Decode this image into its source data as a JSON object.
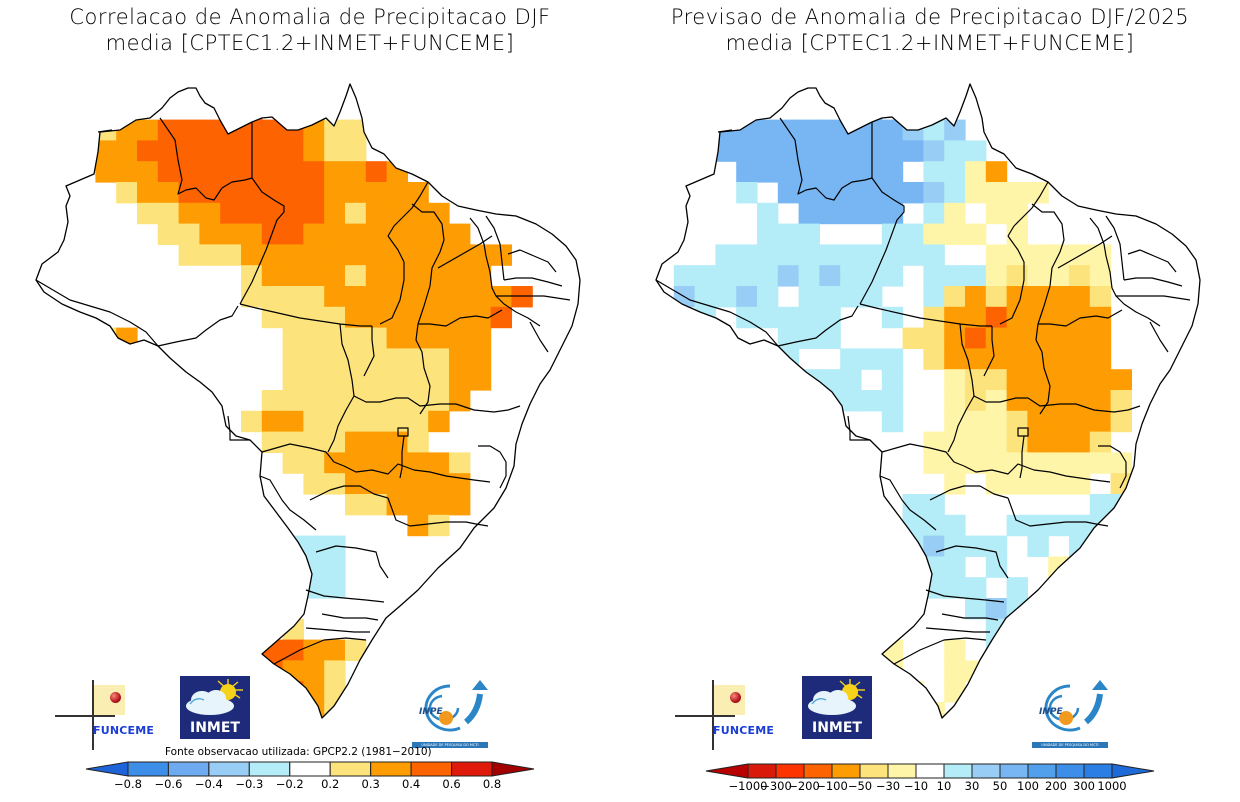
{
  "left_panel": {
    "title_line1": "Correlacao de Anomalia de Precipitacao DJF",
    "title_line2": "media [CPTEC1.2+INMET+FUNCEME]",
    "source_note": "Fonte observacao utilizada: GPCP2.2 (1981−2010)"
  },
  "right_panel": {
    "title_line1": "Previsao de Anomalia de Precipitacao DJF/2025",
    "title_line2": "media [CPTEC1.2+INMET+FUNCEME]"
  },
  "logos": {
    "funceme": "FUNCEME",
    "inmet": "INMET",
    "inpe": "INPE",
    "inpe_subtitle": "UNIDADE DE PESQUISA DO MCTI"
  },
  "chart_data": [
    {
      "type": "heatmap",
      "title": "Correlacao de Anomalia de Precipitacao DJF",
      "subtitle": "media [CPTEC1.2+INMET+FUNCEME]",
      "region": "Brazil",
      "variable": "Correlation of precipitation anomaly",
      "source": "GPCP2.2 (1981-2010)",
      "legend": {
        "placement": "bottom",
        "tick_labels": [
          "−0.8",
          "−0.6",
          "−0.4",
          "−0.3",
          "−0.2",
          "0.2",
          "0.3",
          "0.4",
          "0.6",
          "0.8"
        ],
        "bins": [
          {
            "range": "< -0.8",
            "color": "#1e64d8"
          },
          {
            "range": "-0.8 to -0.6",
            "color": "#3d8ee8"
          },
          {
            "range": "-0.6 to -0.4",
            "color": "#6eaaf0"
          },
          {
            "range": "-0.4 to -0.3",
            "color": "#98cdf5"
          },
          {
            "range": "-0.3 to -0.2",
            "color": "#b4ecf7"
          },
          {
            "range": "-0.2 to 0.2",
            "color": "#ffffff"
          },
          {
            "range": "0.2 to 0.3",
            "color": "#fde37c"
          },
          {
            "range": "0.3 to 0.4",
            "color": "#fe9d03"
          },
          {
            "range": "0.4 to 0.6",
            "color": "#fd6300"
          },
          {
            "range": "0.6 to 0.8",
            "color": "#e01a0b"
          },
          {
            "range": "> 0.8",
            "color": "#a30000"
          }
        ]
      },
      "grid_legend_index": {
        "b3": "#98cdf5",
        "b4": "#b4ecf7",
        "w": "#ffffff",
        "y": "#fde37c",
        "o": "#fe9d03",
        "r": "#fd6300",
        "bb": "#6eaaf0"
      },
      "grid": [
        "..........o.......",
        ".........rr..........",
        "..yyoorrrrrrroyy......",
        "..yoorrrrrrrroyy......",
        "...ooorrrrrrrrooro....",
        "....yoorrrrrrrooooo...",
        ".....yyoorrrrroyoooo..",
        "....wwyyooorroooooooo.",
        "...wwwwyyyooooooooooooo",
        ".wwwwwwwwwyooooyoooooo",
        ".wwwwwwwwwyyyyooooooooor",
        ".wwwwwwwwwwyyyyooooooor",
        "..yyowwwwwwwyyyyyooooo",
        "..yoowwwwwwwyyyyyyyyoo",
        "....yywwwwwwyyyyyyyyoo",
        ".....wwwwwwyyyyyyyyyo",
        ".....wb4wwwyooyyyyyyo.",
        ".....wwwwwwyyyyoooyw..",
        ".......wwwwwyyooooooy.",
        ".......wwwwwwyyoooooo.",
        "........wwwwwwwyyoooo.",
        "........wwwwwwwwwwoy..",
        ".........wwwb4b4b4ww.....",
        ".........wb4bbb3b4b4w....",
        ".........wb4b4b3b4b4.....",
        "..........wwwwww.........",
        "..........wwyww..........",
        ".........oorrooyw........",
        "........rrrrooyw.........",
        ".........rrrroyw.........",
        "...........rroy.........."
      ]
    },
    {
      "type": "heatmap",
      "title": "Previsao de Anomalia de Precipitacao DJF/2025",
      "subtitle": "media [CPTEC1.2+INMET+FUNCEME]",
      "region": "Brazil",
      "variable": "Precipitation anomaly forecast (mm)",
      "legend": {
        "placement": "bottom",
        "tick_labels": [
          "−1000",
          "−300",
          "−200",
          "−100",
          "−50",
          "−30",
          "−10",
          "10",
          "30",
          "50",
          "100",
          "200",
          "300",
          "1000"
        ],
        "bins": [
          {
            "range": "< -1000",
            "color": "#b80000"
          },
          {
            "range": "-1000 to -300",
            "color": "#d9190a"
          },
          {
            "range": "-300 to -200",
            "color": "#fd3300"
          },
          {
            "range": "-200 to -100",
            "color": "#fd6300"
          },
          {
            "range": "-100 to -50",
            "color": "#fe9d03"
          },
          {
            "range": "-50 to -30",
            "color": "#fde37c"
          },
          {
            "range": "-30 to -10",
            "color": "#fff5a8"
          },
          {
            "range": "-10 to 10",
            "color": "#ffffff"
          },
          {
            "range": "10 to 30",
            "color": "#b4ecf7"
          },
          {
            "range": "30 to 50",
            "color": "#98cdf5"
          },
          {
            "range": "50 to 100",
            "color": "#77b6f3"
          },
          {
            "range": "100 to 200",
            "color": "#529fec"
          },
          {
            "range": "200 to 300",
            "color": "#3d8ee8"
          },
          {
            "range": "300 to 1000",
            "color": "#2b7fe4"
          },
          {
            "range": "> 1000",
            "color": "#1e6ad6"
          }
        ]
      },
      "grid": [
        "..........B.......",
        ".........BB..........",
        "..bbBBBBBBBBBbcb......",
        "..bBBBBBBBBBBbcc......",
        "...bbBBBBBBBBbbccfo...",
        "....cbbBBBBBBBbcffff..",
        ".....cbbBBBBBbbcfwff..",
        "....wcccbbbbbbccfffwf.",
        "...cccccccccccwwffffffw",
        ".cccccbcbcccwcccfyffyf",
        ".bccbcbbccccwwcyoyooooy",
        ".bbcbbcccccwwcwyoorooooo",
        "..bbbbwwcccwwwyyoroooooo",
        "..bbbwwcwwcccwyoooooooo",
        "....wwccccwcwwfyyoooooo",
        ".....wwwccccwwfyfoooooy",
        ".....wwwcwwcwwfffyooooy.",
        ".....wwwwwwwwffffyoooy..",
        ".......fwwwwwffffffffff.",
        ".......ffwwwwwfwfffffwy.",
        "........fwwwccwwwwwwwcc.",
        "........fwwwcccwwcccccc.",
        ".........wwccbcccwcwcc...",
        ".........wwwcccbbcwwfw...",
        ".........wwwccccbbcw.....",
        "..........wwwwwcbc.......",
        "..........wwwwwwc........",
        ".........fffwwfwc........",
        "........yfffwwff.........",
        ".........ffffwfw.........",
        "...........fffw.........."
      ]
    }
  ]
}
